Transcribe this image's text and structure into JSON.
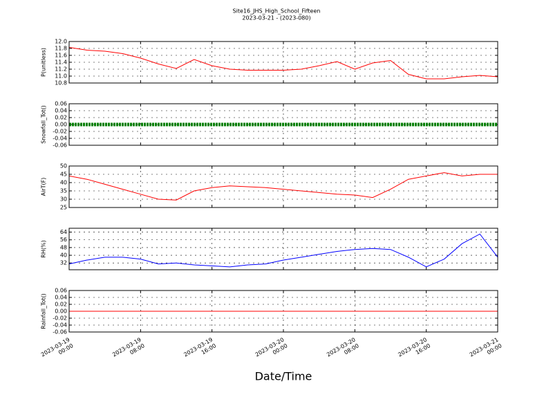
{
  "title": "Site16_JHS_High_School_Fifteen",
  "subtitle": "2023-03-21 - (2023-080)",
  "x_label": "Date/Time",
  "chart_data": [
    {
      "type": "line",
      "y_label": "P(unitless)",
      "ylim": [
        10.8,
        12.0
      ],
      "yticks": [
        {
          "value": 10.8,
          "label": "10.8"
        },
        {
          "value": 11,
          "label": "11.0"
        },
        11.2,
        11.4,
        11.6,
        11.8,
        {
          "value": 12,
          "label": "12.0"
        }
      ],
      "xlim": [
        "2023-03-19 00:00",
        "2023-03-21 00:00"
      ],
      "xticks": [
        "2023-03-19 00:00",
        "2023-03-19 08:00",
        "2023-03-19 16:00",
        "2023-03-20 00:00",
        "2023-03-20 08:00",
        "2023-03-20 16:00",
        "2023-03-21 00:00"
      ],
      "grid": true,
      "x": [
        "2023-03-19 00:00",
        "2023-03-19 02:00",
        "2023-03-19 04:00",
        "2023-03-19 06:00",
        "2023-03-19 08:00",
        "2023-03-19 10:00",
        "2023-03-19 12:00",
        "2023-03-19 14:00",
        "2023-03-19 16:00",
        "2023-03-19 18:00",
        "2023-03-19 20:00",
        "2023-03-19 22:00",
        "2023-03-20 00:00",
        "2023-03-20 02:00",
        "2023-03-20 04:00",
        "2023-03-20 06:00",
        "2023-03-20 08:00",
        "2023-03-20 10:00",
        "2023-03-20 12:00",
        "2023-03-20 14:00",
        "2023-03-20 16:00",
        "2023-03-20 18:00",
        "2023-03-20 20:00",
        "2023-03-20 22:00",
        "2023-03-21 00:00"
      ],
      "series": [
        {
          "color": "#ff0000",
          "values": [
            11.83,
            11.75,
            11.72,
            11.65,
            11.52,
            11.35,
            11.22,
            11.48,
            11.3,
            11.2,
            11.17,
            11.17,
            11.17,
            11.2,
            11.3,
            11.42,
            11.2,
            11.38,
            11.45,
            11.05,
            10.92,
            10.92,
            10.98,
            11.02,
            10.98
          ]
        }
      ]
    },
    {
      "type": "line",
      "y_label": "Snowfall_Tot()",
      "ylim": [
        -0.06,
        0.06
      ],
      "yticks": [
        -0.06,
        -0.04,
        -0.02,
        {
          "value": 0,
          "label": "0.00"
        },
        0.02,
        0.04,
        0.06
      ],
      "xlim": [
        "2023-03-19 00:00",
        "2023-03-21 00:00"
      ],
      "xticks": [
        "2023-03-19 00:00",
        "2023-03-19 08:00",
        "2023-03-19 16:00",
        "2023-03-20 00:00",
        "2023-03-20 08:00",
        "2023-03-20 16:00",
        "2023-03-21 00:00"
      ],
      "grid": true,
      "marker": true,
      "x": [
        "2023-03-19 00:00",
        "2023-03-19 02:00",
        "2023-03-19 04:00",
        "2023-03-19 06:00",
        "2023-03-19 08:00",
        "2023-03-19 10:00",
        "2023-03-19 12:00",
        "2023-03-19 14:00",
        "2023-03-19 16:00",
        "2023-03-19 18:00",
        "2023-03-19 20:00",
        "2023-03-19 22:00",
        "2023-03-20 00:00",
        "2023-03-20 02:00",
        "2023-03-20 04:00",
        "2023-03-20 06:00",
        "2023-03-20 08:00",
        "2023-03-20 10:00",
        "2023-03-20 12:00",
        "2023-03-20 14:00",
        "2023-03-20 16:00",
        "2023-03-20 18:00",
        "2023-03-20 20:00",
        "2023-03-20 22:00",
        "2023-03-21 00:00"
      ],
      "series": [
        {
          "color": "#008000",
          "values": [
            0,
            0,
            0,
            0,
            0,
            0,
            0,
            0,
            0,
            0,
            0,
            0,
            0,
            0,
            0,
            0,
            0,
            0,
            0,
            0,
            0,
            0,
            0,
            0,
            0
          ]
        }
      ]
    },
    {
      "type": "line",
      "y_label": "AirT(F)",
      "ylim": [
        25,
        50
      ],
      "yticks": [
        25,
        30,
        35,
        40,
        45,
        50
      ],
      "xlim": [
        "2023-03-19 00:00",
        "2023-03-21 00:00"
      ],
      "xticks": [
        "2023-03-19 00:00",
        "2023-03-19 08:00",
        "2023-03-19 16:00",
        "2023-03-20 00:00",
        "2023-03-20 08:00",
        "2023-03-20 16:00",
        "2023-03-21 00:00"
      ],
      "grid": true,
      "x": [
        "2023-03-19 00:00",
        "2023-03-19 02:00",
        "2023-03-19 04:00",
        "2023-03-19 06:00",
        "2023-03-19 08:00",
        "2023-03-19 10:00",
        "2023-03-19 12:00",
        "2023-03-19 14:00",
        "2023-03-19 16:00",
        "2023-03-19 18:00",
        "2023-03-19 20:00",
        "2023-03-19 22:00",
        "2023-03-20 00:00",
        "2023-03-20 02:00",
        "2023-03-20 04:00",
        "2023-03-20 06:00",
        "2023-03-20 08:00",
        "2023-03-20 10:00",
        "2023-03-20 12:00",
        "2023-03-20 14:00",
        "2023-03-20 16:00",
        "2023-03-20 18:00",
        "2023-03-20 20:00",
        "2023-03-20 22:00",
        "2023-03-21 00:00"
      ],
      "series": [
        {
          "color": "#ff0000",
          "values": [
            44,
            42,
            39,
            36,
            33,
            30,
            29.5,
            35,
            37,
            38,
            37.5,
            37,
            36,
            35,
            34,
            33,
            32.5,
            31,
            36,
            42,
            44,
            46,
            44,
            45,
            45
          ]
        }
      ]
    },
    {
      "type": "line",
      "y_label": "RH(%)",
      "ylim": [
        25,
        68
      ],
      "yticks": [
        32,
        40,
        48,
        56,
        64
      ],
      "xlim": [
        "2023-03-19 00:00",
        "2023-03-21 00:00"
      ],
      "xticks": [
        "2023-03-19 00:00",
        "2023-03-19 08:00",
        "2023-03-19 16:00",
        "2023-03-20 00:00",
        "2023-03-20 08:00",
        "2023-03-20 16:00",
        "2023-03-21 00:00"
      ],
      "grid": true,
      "x": [
        "2023-03-19 00:00",
        "2023-03-19 02:00",
        "2023-03-19 04:00",
        "2023-03-19 06:00",
        "2023-03-19 08:00",
        "2023-03-19 10:00",
        "2023-03-19 12:00",
        "2023-03-19 14:00",
        "2023-03-19 16:00",
        "2023-03-19 18:00",
        "2023-03-19 20:00",
        "2023-03-19 22:00",
        "2023-03-20 00:00",
        "2023-03-20 02:00",
        "2023-03-20 04:00",
        "2023-03-20 06:00",
        "2023-03-20 08:00",
        "2023-03-20 10:00",
        "2023-03-20 12:00",
        "2023-03-20 14:00",
        "2023-03-20 16:00",
        "2023-03-20 18:00",
        "2023-03-20 20:00",
        "2023-03-20 22:00",
        "2023-03-21 00:00"
      ],
      "series": [
        {
          "color": "#0000ff",
          "values": [
            31,
            35,
            38,
            38,
            36,
            31,
            32,
            30,
            29,
            28,
            30,
            31,
            35,
            38,
            41,
            44,
            46,
            47,
            46,
            38,
            28,
            36,
            52,
            62,
            38
          ]
        }
      ]
    },
    {
      "type": "line",
      "y_label": "Rainfall_Tot()",
      "ylim": [
        -0.06,
        0.06
      ],
      "yticks": [
        -0.06,
        -0.04,
        -0.02,
        {
          "value": 0,
          "label": "0.00"
        },
        0.02,
        0.04,
        0.06
      ],
      "xlim": [
        "2023-03-19 00:00",
        "2023-03-21 00:00"
      ],
      "xticks": [
        "2023-03-19 00:00",
        "2023-03-19 08:00",
        "2023-03-19 16:00",
        "2023-03-20 00:00",
        "2023-03-20 08:00",
        "2023-03-20 16:00",
        "2023-03-21 00:00"
      ],
      "grid": true,
      "show_xtick_labels": true,
      "x": [
        "2023-03-19 00:00",
        "2023-03-19 02:00",
        "2023-03-19 04:00",
        "2023-03-19 06:00",
        "2023-03-19 08:00",
        "2023-03-19 10:00",
        "2023-03-19 12:00",
        "2023-03-19 14:00",
        "2023-03-19 16:00",
        "2023-03-19 18:00",
        "2023-03-19 20:00",
        "2023-03-19 22:00",
        "2023-03-20 00:00",
        "2023-03-20 02:00",
        "2023-03-20 04:00",
        "2023-03-20 06:00",
        "2023-03-20 08:00",
        "2023-03-20 10:00",
        "2023-03-20 12:00",
        "2023-03-20 14:00",
        "2023-03-20 16:00",
        "2023-03-20 18:00",
        "2023-03-20 20:00",
        "2023-03-20 22:00",
        "2023-03-21 00:00"
      ],
      "series": [
        {
          "color": "#ff0000",
          "values": [
            0,
            0,
            0,
            0,
            0,
            0,
            0,
            0,
            0,
            0,
            0,
            0,
            0,
            0,
            0,
            0,
            0,
            0,
            0,
            0,
            0,
            0,
            0,
            0,
            0
          ]
        }
      ]
    }
  ]
}
